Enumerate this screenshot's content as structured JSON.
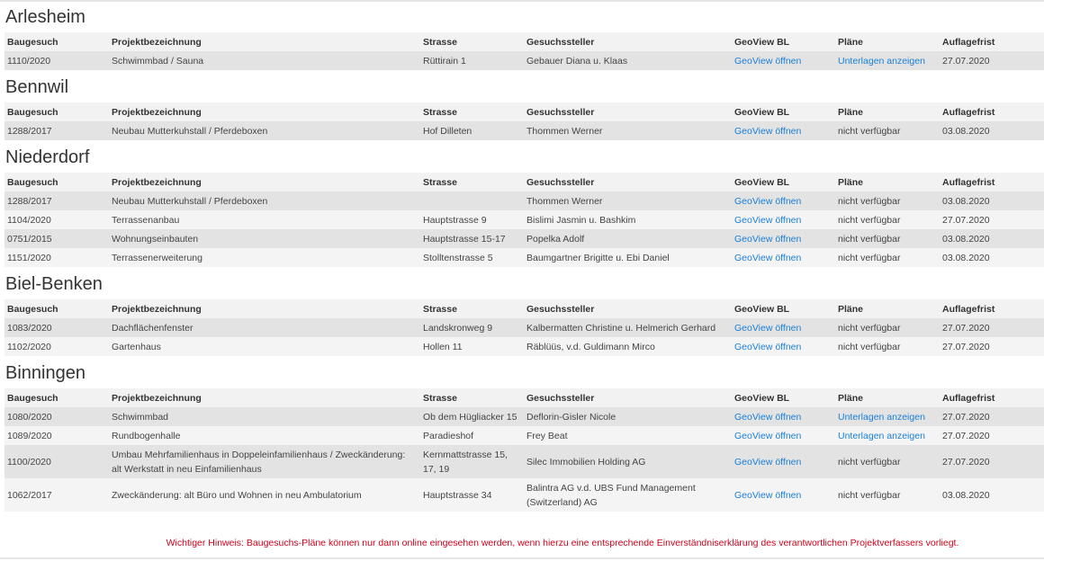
{
  "columns": [
    "Baugesuch",
    "Projektbezeichnung",
    "Strasse",
    "Gesuchssteller",
    "GeoView BL",
    "Pläne",
    "Auflagefrist"
  ],
  "sections": [
    {
      "name": "Arlesheim",
      "rows": [
        {
          "nr": "1110/2020",
          "projekt": "Schwimmbad / Sauna",
          "strasse": "Rüttirain 1",
          "gesuchsteller": "Gebauer Diana u. Klaas",
          "geoview": "GeoView öffnen",
          "plaene": "Unterlagen anzeigen",
          "plaene_link": true,
          "frist": "27.07.2020"
        }
      ]
    },
    {
      "name": "Bennwil",
      "rows": [
        {
          "nr": "1288/2017",
          "projekt": "Neubau Mutterkuhstall / Pferdeboxen",
          "strasse": "Hof Dilleten",
          "gesuchsteller": "Thommen Werner",
          "geoview": "GeoView öffnen",
          "plaene": "nicht verfügbar",
          "plaene_link": false,
          "frist": "03.08.2020"
        }
      ]
    },
    {
      "name": "Niederdorf",
      "rows": [
        {
          "nr": "1288/2017",
          "projekt": "Neubau Mutterkuhstall / Pferdeboxen",
          "strasse": "",
          "gesuchsteller": "Thommen Werner",
          "geoview": "GeoView öffnen",
          "plaene": "nicht verfügbar",
          "plaene_link": false,
          "frist": "03.08.2020"
        },
        {
          "nr": "1104/2020",
          "projekt": "Terrassenanbau",
          "strasse": "Hauptstrasse 9",
          "gesuchsteller": "Bislimi Jasmin u. Bashkim",
          "geoview": "GeoView öffnen",
          "plaene": "nicht verfügbar",
          "plaene_link": false,
          "frist": "27.07.2020"
        },
        {
          "nr": "0751/2015",
          "projekt": "Wohnungseinbauten",
          "strasse": "Hauptstrasse 15-17",
          "gesuchsteller": "Popelka Adolf",
          "geoview": "GeoView öffnen",
          "plaene": "nicht verfügbar",
          "plaene_link": false,
          "frist": "03.08.2020"
        },
        {
          "nr": "1151/2020",
          "projekt": "Terrassenerweiterung",
          "strasse": "Stolltenstrasse 5",
          "gesuchsteller": "Baumgartner Brigitte u. Ebi Daniel",
          "geoview": "GeoView öffnen",
          "plaene": "nicht verfügbar",
          "plaene_link": false,
          "frist": "03.08.2020"
        }
      ]
    },
    {
      "name": "Biel-Benken",
      "rows": [
        {
          "nr": "1083/2020",
          "projekt": "Dachflächenfenster",
          "strasse": "Landskronweg 9",
          "gesuchsteller": "Kalbermatten Christine u. Helmerich Gerhard",
          "geoview": "GeoView öffnen",
          "plaene": "nicht verfügbar",
          "plaene_link": false,
          "frist": "27.07.2020"
        },
        {
          "nr": "1102/2020",
          "projekt": "Gartenhaus",
          "strasse": "Hollen 11",
          "gesuchsteller": "Räblüüs, v.d. Guldimann Mirco",
          "geoview": "GeoView öffnen",
          "plaene": "nicht verfügbar",
          "plaene_link": false,
          "frist": "27.07.2020"
        }
      ]
    },
    {
      "name": "Binningen",
      "rows": [
        {
          "nr": "1080/2020",
          "projekt": "Schwimmbad",
          "strasse": "Ob dem Hügliacker 15",
          "gesuchsteller": "Deflorin-Gisler Nicole",
          "geoview": "GeoView öffnen",
          "plaene": "Unterlagen anzeigen",
          "plaene_link": true,
          "frist": "27.07.2020"
        },
        {
          "nr": "1089/2020",
          "projekt": "Rundbogenhalle",
          "strasse": "Paradieshof",
          "gesuchsteller": "Frey Beat",
          "geoview": "GeoView öffnen",
          "plaene": "Unterlagen anzeigen",
          "plaene_link": true,
          "frist": "27.07.2020"
        },
        {
          "nr": "1100/2020",
          "projekt": "Umbau Mehrfamilienhaus in Doppeleinfamilienhaus / Zweckänderung: alt Werkstatt in neu Einfamilienhaus",
          "strasse": "Kernmattstrasse 15, 17, 19",
          "gesuchsteller": "Silec Immobilien Holding AG",
          "geoview": "GeoView öffnen",
          "plaene": "nicht verfügbar",
          "plaene_link": false,
          "frist": "27.07.2020"
        },
        {
          "nr": "1062/2017",
          "projekt": "Zweckänderung: alt Büro und Wohnen in neu Ambulatorium",
          "strasse": "Hauptstrasse 34",
          "gesuchsteller": "Balintra AG v.d. UBS Fund Management (Switzerland) AG",
          "geoview": "GeoView öffnen",
          "plaene": "nicht verfügbar",
          "plaene_link": false,
          "frist": "03.08.2020"
        }
      ]
    }
  ],
  "note": "Wichtiger Hinweis: Baugesuchs-Pläne können nur dann online eingesehen werden, wenn hierzu eine entsprechende Einverständniserklärung des verantwortlichen Projektverfassers vorliegt.",
  "colors": {
    "link": "#1a7fd6",
    "note": "#d0021b",
    "row_dark": "#e3e3e3",
    "row_light": "#f4f4f4",
    "header": "#f2f2f2"
  }
}
